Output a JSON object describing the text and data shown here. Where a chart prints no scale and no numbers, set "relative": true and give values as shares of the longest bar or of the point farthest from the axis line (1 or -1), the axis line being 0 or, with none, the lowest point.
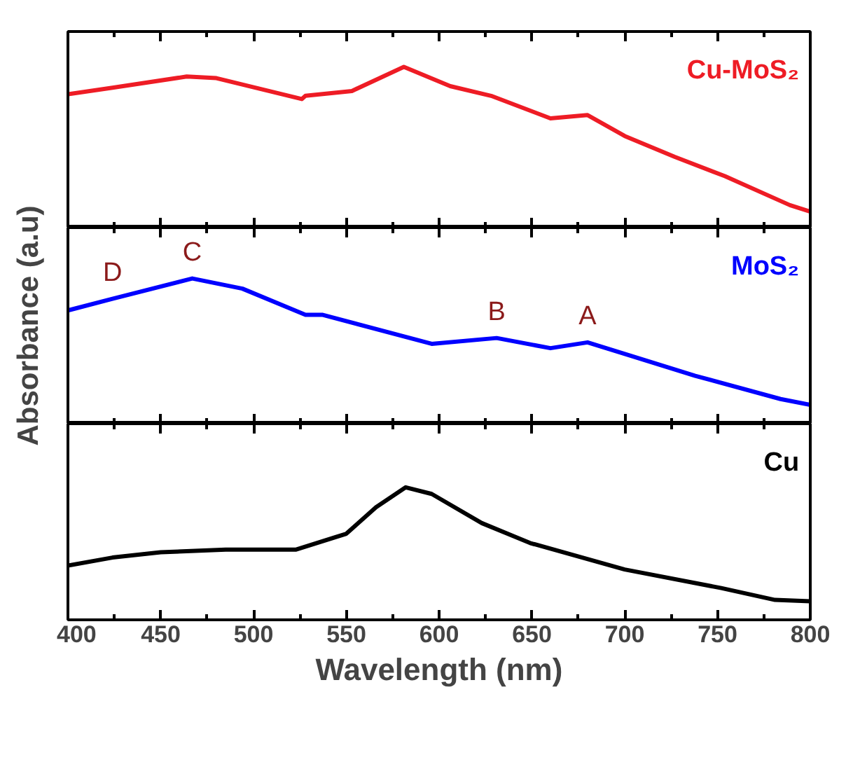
{
  "chart_data": [
    {
      "type": "line",
      "relative": true,
      "tick_labels": false,
      "xlim": [
        400,
        800
      ],
      "xticks": [
        400,
        450,
        500,
        550,
        600,
        650,
        700,
        750,
        800
      ],
      "x": [
        400,
        424,
        464,
        480,
        526,
        528,
        553,
        581,
        606,
        628,
        660,
        680,
        700,
        727,
        754,
        789,
        800
      ],
      "series": [
        {
          "name": "Cu-MoS₂",
          "color": "#ee1c25",
          "values": [
            0.83,
            0.87,
            0.94,
            0.93,
            0.8,
            0.82,
            0.85,
            1.0,
            0.88,
            0.82,
            0.68,
            0.7,
            0.57,
            0.44,
            0.32,
            0.14,
            0.1
          ]
        }
      ]
    },
    {
      "type": "line",
      "relative": true,
      "tick_labels": false,
      "ylabel": "Absorbance (a.u)",
      "xlim": [
        400,
        800
      ],
      "xticks": [
        400,
        450,
        500,
        550,
        600,
        650,
        700,
        750,
        800
      ],
      "x": [
        400,
        424,
        467,
        494,
        528,
        537,
        596,
        631,
        660,
        680,
        738,
        784,
        800
      ],
      "series": [
        {
          "name": "MoS₂",
          "color": "#0000ff",
          "values": [
            0.78,
            0.86,
            1.0,
            0.93,
            0.75,
            0.75,
            0.55,
            0.59,
            0.52,
            0.56,
            0.33,
            0.17,
            0.13
          ]
        }
      ],
      "annotations": [
        {
          "text": "D",
          "x": 424,
          "y": 0.86
        },
        {
          "text": "C",
          "x": 467,
          "y": 1.0
        },
        {
          "text": "B",
          "x": 631,
          "y": 0.59
        },
        {
          "text": "A",
          "x": 680,
          "y": 0.56
        }
      ]
    },
    {
      "type": "line",
      "relative": true,
      "tick_labels": "x",
      "xlabel": "Wavelength (nm)",
      "xlim": [
        400,
        800
      ],
      "xticks": [
        400,
        450,
        500,
        550,
        600,
        650,
        700,
        750,
        800
      ],
      "x": [
        400,
        424,
        450,
        485,
        523,
        550,
        566,
        582,
        596,
        623,
        649,
        700,
        752,
        781,
        800
      ],
      "series": [
        {
          "name": "Cu",
          "color": "#000000",
          "values": [
            0.41,
            0.47,
            0.51,
            0.53,
            0.53,
            0.65,
            0.85,
            1.0,
            0.95,
            0.73,
            0.58,
            0.38,
            0.24,
            0.15,
            0.14
          ]
        }
      ]
    }
  ]
}
